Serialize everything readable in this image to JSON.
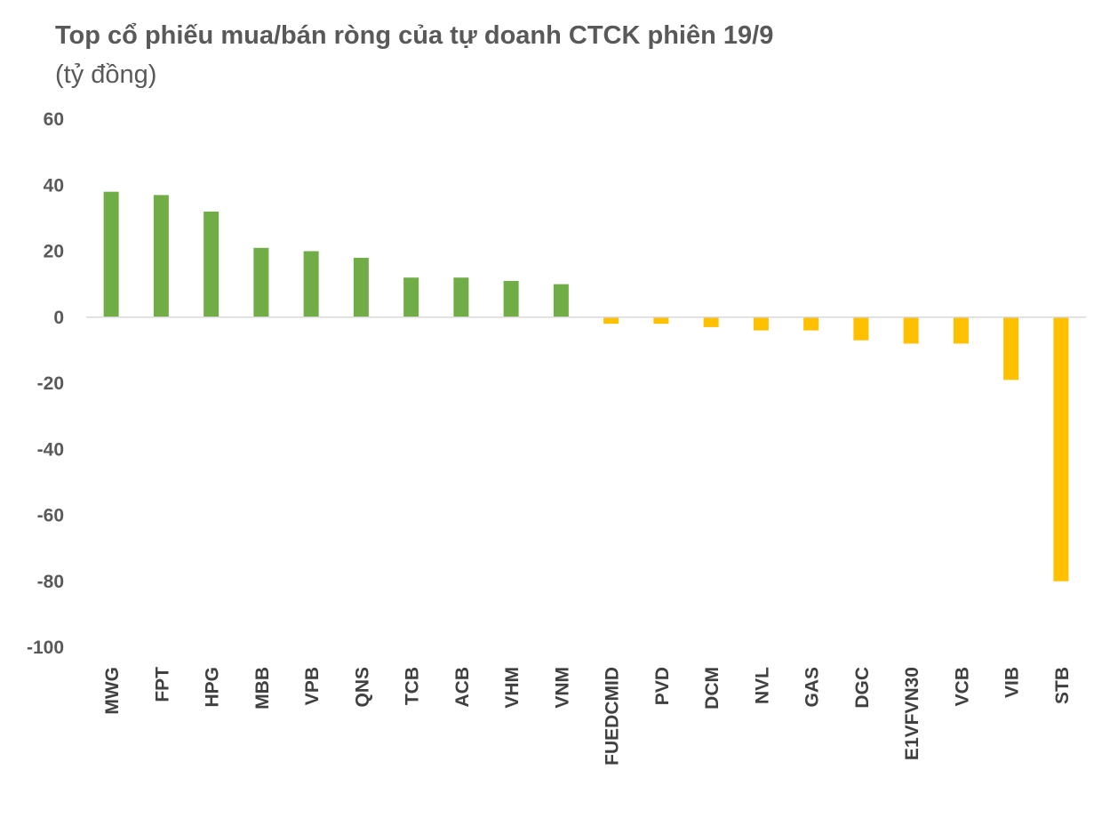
{
  "chart_data": {
    "type": "bar",
    "title": "Top cổ phiếu mua/bán ròng của tự doanh CTCK phiên 19/9",
    "subtitle": "(tỷ đồng)",
    "categories": [
      "MWG",
      "FPT",
      "HPG",
      "MBB",
      "VPB",
      "QNS",
      "TCB",
      "ACB",
      "VHM",
      "VNM",
      "FUEDCMID",
      "PVD",
      "DCM",
      "NVL",
      "GAS",
      "DGC",
      "E1VFVN30",
      "VCB",
      "VIB",
      "STB"
    ],
    "values": [
      38,
      37,
      32,
      21,
      20,
      18,
      12,
      12,
      11,
      10,
      -2,
      -2,
      -3,
      -4,
      -4,
      -7,
      -8,
      -8,
      -19,
      -80
    ],
    "ylim": [
      -100,
      60
    ],
    "yticks": [
      60,
      40,
      20,
      0,
      -20,
      -40,
      -60,
      -80,
      -100
    ],
    "grid": false,
    "legend": "none",
    "colors": {
      "positive": "#70AD47",
      "negative": "#FFC000",
      "axis": "#D9D9D9"
    }
  }
}
